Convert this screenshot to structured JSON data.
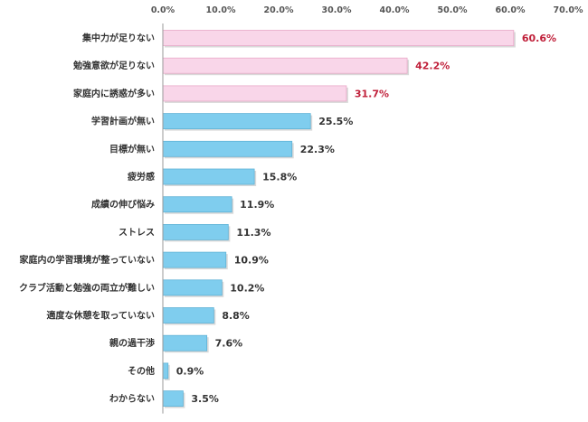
{
  "chart_data": {
    "type": "bar",
    "orientation": "horizontal",
    "title": "",
    "xlabel": "",
    "ylabel": "",
    "xlim": [
      0,
      70
    ],
    "x_ticks": [
      "0.0%",
      "10.0%",
      "20.0%",
      "30.0%",
      "40.0%",
      "50.0%",
      "60.0%",
      "70.0%"
    ],
    "x_axis_position": "top",
    "grid": false,
    "legend": "none",
    "categories": [
      "集中力が足りない",
      "勉強意欲が足りない",
      "家庭内に誘惑が多い",
      "学習計画が無い",
      "目標が無い",
      "疲労感",
      "成績の伸び悩み",
      "ストレス",
      "家庭内の学習環境が整っていない",
      "クラブ活動と勉強の両立が難しい",
      "適度な休憩を取っていない",
      "親の過干渉",
      "その他",
      "わからない"
    ],
    "values": [
      60.6,
      42.2,
      31.7,
      25.5,
      22.3,
      15.8,
      11.9,
      11.3,
      10.9,
      10.2,
      8.8,
      7.6,
      0.9,
      3.5
    ],
    "value_labels": [
      "60.6%",
      "42.2%",
      "31.7%",
      "25.5%",
      "22.3%",
      "15.8%",
      "11.9%",
      "11.3%",
      "10.9%",
      "10.2%",
      "8.8%",
      "7.6%",
      "0.9%",
      "3.5%"
    ],
    "highlight_count": 3,
    "colors": {
      "highlight_bar": "#f9d6e9",
      "highlight_border": "#e9a8c8",
      "normal_bar": "#7fcdee",
      "normal_border": "#5fb2d6",
      "highlight_label": "#c0203a",
      "normal_label": "#333333",
      "axis": "#999999"
    }
  }
}
